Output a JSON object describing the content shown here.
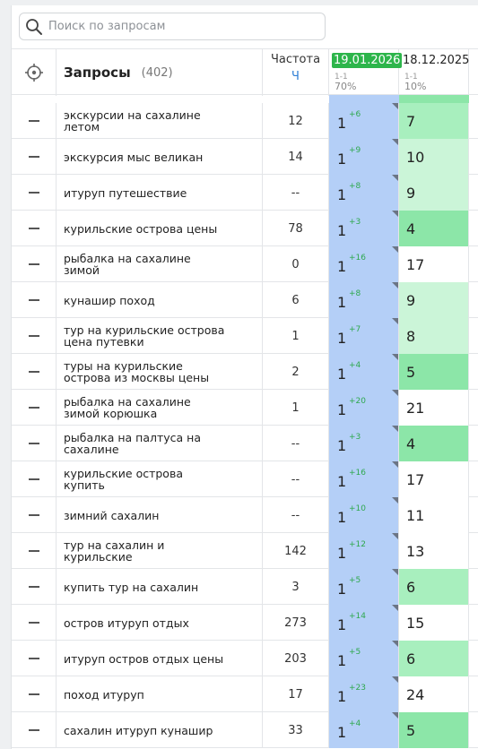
{
  "search": {
    "placeholder": "Поиск по запросам"
  },
  "header": {
    "title": "Запросы",
    "count": "(402)",
    "freq_label": "Частота",
    "freq_sub": "Ч",
    "date1": {
      "date": "19.01.2026",
      "range": "1-1",
      "pct": "70%"
    },
    "date2": {
      "date": "18.12.2025",
      "range": "1-1",
      "pct": "10%"
    }
  },
  "colors": {
    "current_col": "#b4cff7",
    "pos_3_5": "#8ce6a8",
    "pos_6_7": "#a8efbe",
    "pos_8_10": "#cbf5d8",
    "pos_low": "#ffffff",
    "delta": "#2fa84f",
    "date_badge": "#2db54b"
  },
  "rows": [
    {
      "query": "экскурсии на сахалине летом",
      "freq": "12",
      "pos1": "1",
      "delta": "+6",
      "pos2": "7"
    },
    {
      "query": "экскурсия мыс великан",
      "freq": "14",
      "pos1": "1",
      "delta": "+9",
      "pos2": "10"
    },
    {
      "query": "итуруп путешествие",
      "freq": "--",
      "pos1": "1",
      "delta": "+8",
      "pos2": "9"
    },
    {
      "query": "курильские острова цены",
      "freq": "78",
      "pos1": "1",
      "delta": "+3",
      "pos2": "4"
    },
    {
      "query": "рыбалка на сахалине зимой",
      "freq": "0",
      "pos1": "1",
      "delta": "+16",
      "pos2": "17"
    },
    {
      "query": "кунашир поход",
      "freq": "6",
      "pos1": "1",
      "delta": "+8",
      "pos2": "9"
    },
    {
      "query": "тур на курильские острова цена путевки",
      "freq": "1",
      "pos1": "1",
      "delta": "+7",
      "pos2": "8"
    },
    {
      "query": "туры на курильские острова из москвы цены",
      "freq": "2",
      "pos1": "1",
      "delta": "+4",
      "pos2": "5"
    },
    {
      "query": "рыбалка на сахалине зимой корюшка",
      "freq": "1",
      "pos1": "1",
      "delta": "+20",
      "pos2": "21"
    },
    {
      "query": "рыбалка на палтуса на сахалине",
      "freq": "--",
      "pos1": "1",
      "delta": "+3",
      "pos2": "4"
    },
    {
      "query": "курильские острова купить",
      "freq": "--",
      "pos1": "1",
      "delta": "+16",
      "pos2": "17"
    },
    {
      "query": "зимний сахалин",
      "freq": "--",
      "pos1": "1",
      "delta": "+10",
      "pos2": "11"
    },
    {
      "query": "тур на сахалин и курильские",
      "freq": "142",
      "pos1": "1",
      "delta": "+12",
      "pos2": "13"
    },
    {
      "query": "купить тур на сахалин",
      "freq": "3",
      "pos1": "1",
      "delta": "+5",
      "pos2": "6"
    },
    {
      "query": "остров итуруп отдых",
      "freq": "273",
      "pos1": "1",
      "delta": "+14",
      "pos2": "15"
    },
    {
      "query": "итуруп остров отдых цены",
      "freq": "203",
      "pos1": "1",
      "delta": "+5",
      "pos2": "6"
    },
    {
      "query": "поход итуруп",
      "freq": "17",
      "pos1": "1",
      "delta": "+23",
      "pos2": "24"
    },
    {
      "query": "сахалин итуруп кунашир",
      "freq": "33",
      "pos1": "1",
      "delta": "+4",
      "pos2": "5"
    }
  ]
}
